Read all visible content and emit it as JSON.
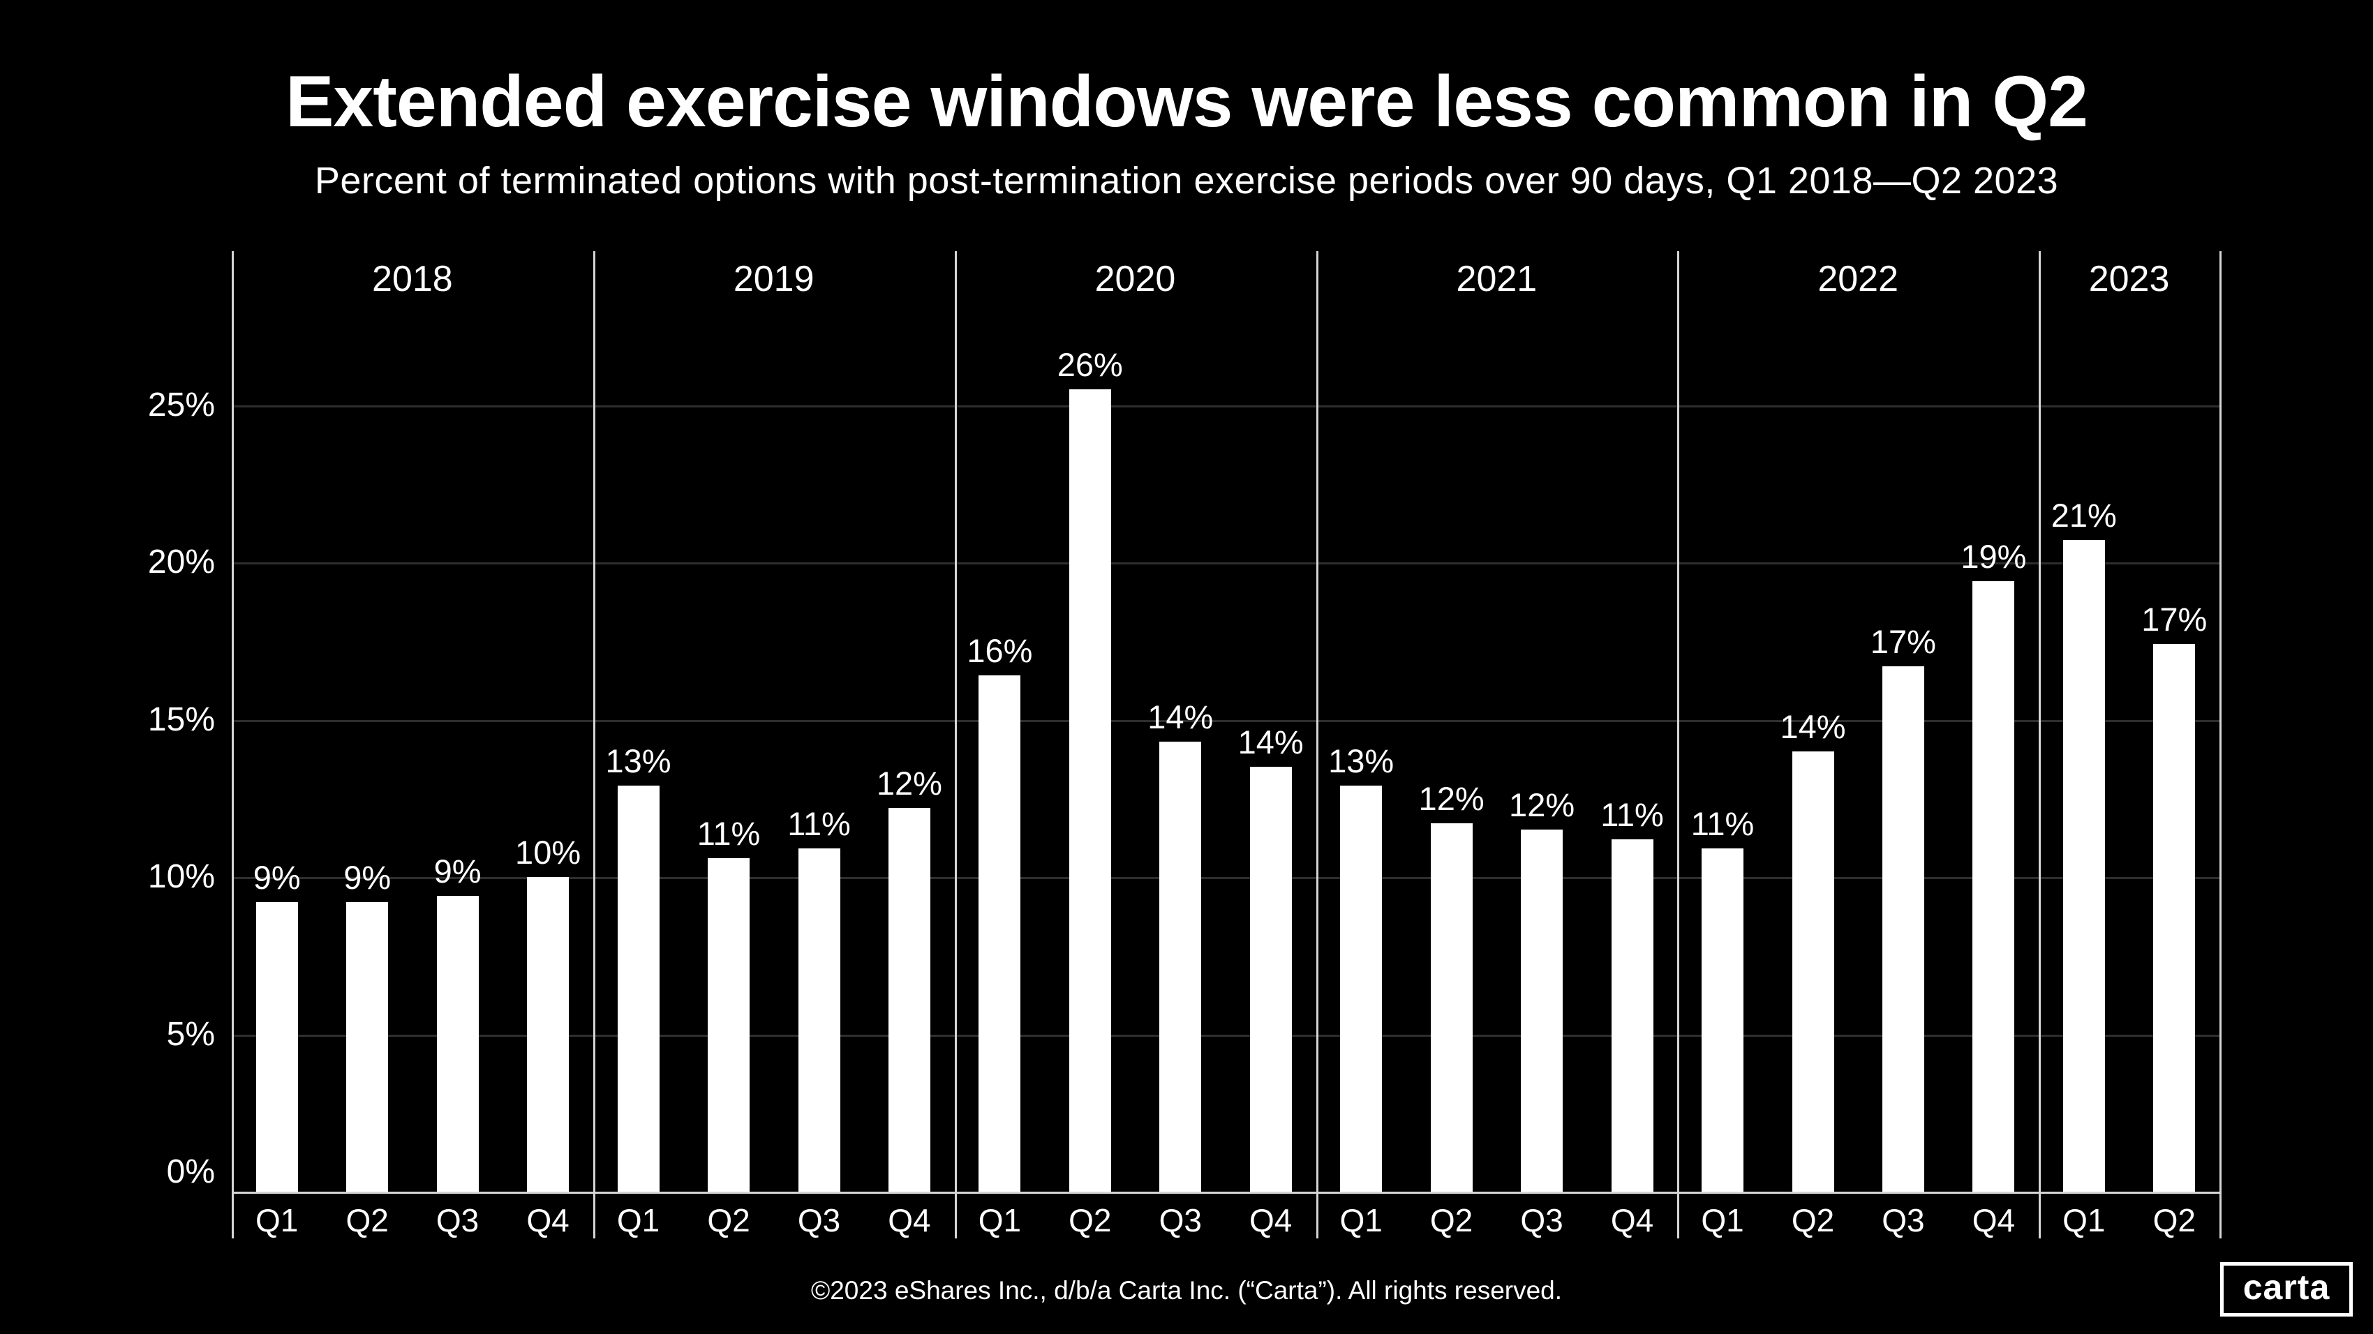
{
  "title": "Extended exercise windows were less common in Q2",
  "subtitle": "Percent of terminated options with post-termination exercise periods over 90 days, Q1 2018—Q2 2023",
  "footer": "©2023 eShares Inc., d/b/a Carta Inc. (“Carta”). All rights reserved.",
  "logo_text": "carta",
  "colors": {
    "background": "#000000",
    "bar": "#ffffff",
    "text": "#ffffff",
    "gridline": "#2e2e2e",
    "axis_line": "#d6d6d6"
  },
  "y_axis": {
    "ticks": [
      {
        "label": "0%",
        "value": 0
      },
      {
        "label": "5%",
        "value": 5
      },
      {
        "label": "10%",
        "value": 10
      },
      {
        "label": "15%",
        "value": 15
      },
      {
        "label": "20%",
        "value": 20
      },
      {
        "label": "25%",
        "value": 25
      }
    ]
  },
  "chart_data": {
    "type": "bar",
    "title": "Extended exercise windows were less common in Q2",
    "subtitle": "Percent of terminated options with post-termination exercise periods over 90 days, Q1 2018—Q2 2023",
    "ylabel": "Percent of terminated options",
    "ylim": [
      0,
      29.9
    ],
    "grid": "horizontal 5% steps",
    "legend": "none",
    "bar_color": "#ffffff",
    "groups": [
      {
        "year": "2018",
        "quarters": [
          "Q1",
          "Q2",
          "Q3",
          "Q4"
        ],
        "values": [
          9.2,
          9.2,
          9.4,
          10.0
        ],
        "labels": [
          "9%",
          "9%",
          "9%",
          "10%"
        ]
      },
      {
        "year": "2019",
        "quarters": [
          "Q1",
          "Q2",
          "Q3",
          "Q4"
        ],
        "values": [
          12.9,
          10.6,
          10.9,
          12.2
        ],
        "labels": [
          "13%",
          "11%",
          "11%",
          "12%"
        ]
      },
      {
        "year": "2020",
        "quarters": [
          "Q1",
          "Q2",
          "Q3",
          "Q4"
        ],
        "values": [
          16.4,
          25.5,
          14.3,
          13.5
        ],
        "labels": [
          "16%",
          "26%",
          "14%",
          "14%"
        ]
      },
      {
        "year": "2021",
        "quarters": [
          "Q1",
          "Q2",
          "Q3",
          "Q4"
        ],
        "values": [
          12.9,
          11.7,
          11.5,
          11.2
        ],
        "labels": [
          "13%",
          "12%",
          "12%",
          "11%"
        ]
      },
      {
        "year": "2022",
        "quarters": [
          "Q1",
          "Q2",
          "Q3",
          "Q4"
        ],
        "values": [
          10.9,
          14.0,
          16.7,
          19.4
        ],
        "labels": [
          "11%",
          "14%",
          "17%",
          "19%"
        ]
      },
      {
        "year": "2023",
        "quarters": [
          "Q1",
          "Q2"
        ],
        "values": [
          20.7,
          17.4
        ],
        "labels": [
          "21%",
          "17%"
        ]
      }
    ]
  }
}
